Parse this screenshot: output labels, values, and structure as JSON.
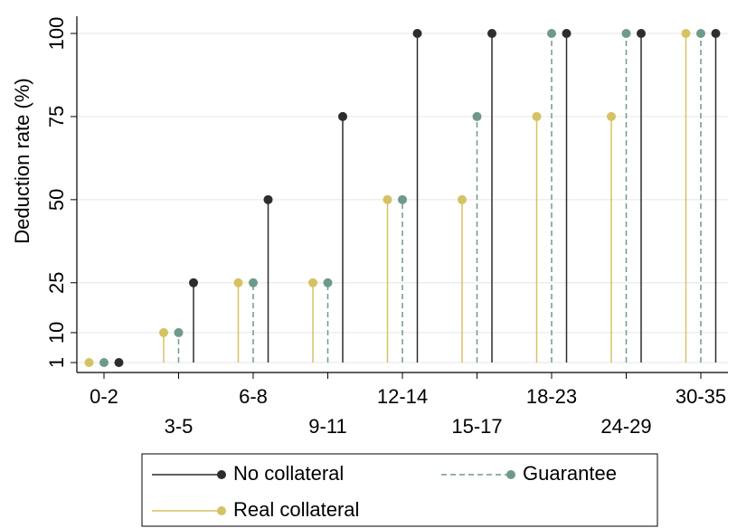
{
  "chart_data": {
    "type": "dropline",
    "y_label": "Deduction rate (%)",
    "categories": [
      "0-2",
      "3-5",
      "6-8",
      "9-11",
      "12-14",
      "15-17",
      "18-23",
      "24-29",
      "30-35"
    ],
    "series": [
      {
        "name": "No collateral",
        "color": "#2d2d2d",
        "line_style": "solid",
        "values": [
          1,
          25,
          50,
          75,
          100,
          100,
          100,
          100,
          100
        ]
      },
      {
        "name": "Guarantee",
        "color": "#6e9a8c",
        "line_style": "dashed",
        "values": [
          1,
          10,
          25,
          25,
          50,
          75,
          100,
          100,
          100
        ]
      },
      {
        "name": "Real collateral",
        "color": "#d6c264",
        "line_style": "solid",
        "values": [
          1,
          10,
          25,
          25,
          50,
          50,
          75,
          75,
          100
        ]
      }
    ],
    "ylim": [
      1,
      100
    ],
    "yticks": [
      1,
      10,
      25,
      50,
      75,
      100
    ],
    "grid": true,
    "legend": "bottom"
  }
}
